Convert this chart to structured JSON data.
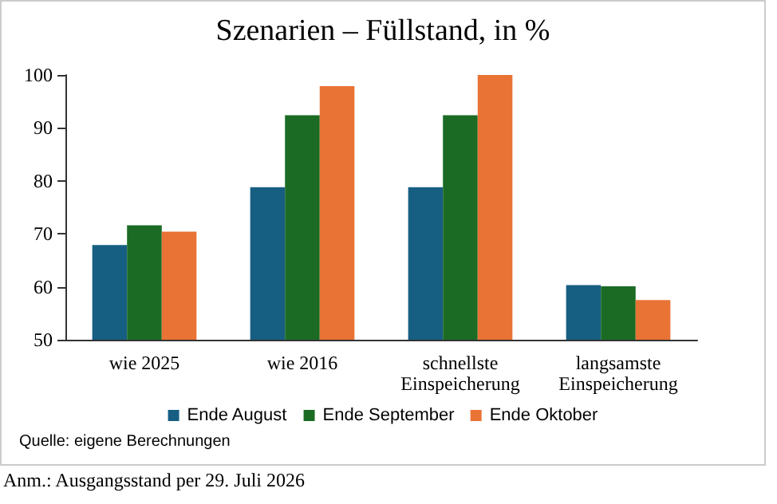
{
  "chart_data": {
    "type": "bar",
    "title": "Szenarien – Füllstand, in %",
    "categories": [
      "wie 2025",
      "wie 2016",
      "schnellste\nEinspeicherung",
      "langsamste\nEinspeicherung"
    ],
    "series": [
      {
        "name": "Ende August",
        "color": "#175e83",
        "values": [
          67.9,
          78.8,
          78.8,
          60.3
        ]
      },
      {
        "name": "Ende September",
        "color": "#1b6b25",
        "values": [
          71.6,
          92.4,
          92.4,
          60.1
        ]
      },
      {
        "name": "Ende Oktober",
        "color": "#e97334",
        "values": [
          70.4,
          97.9,
          100,
          57.5
        ]
      }
    ],
    "ylim": [
      50,
      100
    ],
    "yticks": [
      50,
      60,
      70,
      80,
      90,
      100
    ],
    "grid": false,
    "legend": "bottom",
    "annotations": [
      "Quelle: eigene Berechnungen",
      "Anm.: Ausgangsstand per 29. Juli 2026"
    ]
  }
}
